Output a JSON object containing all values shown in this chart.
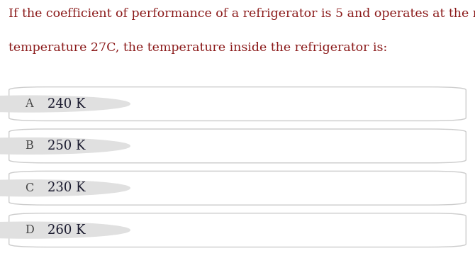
{
  "question_line1": "If the coefficient of performance of a refrigerator is 5 and operates at the room",
  "question_line2": "temperature 27C, the temperature inside the refrigerator is:",
  "options": [
    {
      "label": "A",
      "text": "240 K"
    },
    {
      "label": "B",
      "text": "250 K"
    },
    {
      "label": "C",
      "text": "230 K"
    },
    {
      "label": "D",
      "text": "260 K"
    }
  ],
  "bg_color": "#ffffff",
  "question_color": "#8b1a1a",
  "option_text_color": "#1a1a2e",
  "label_bg_color": "#e0e0e0",
  "label_text_color": "#444444",
  "box_edge_color": "#cccccc",
  "box_fill_color": "#ffffff",
  "question_fontsize": 12.5,
  "option_fontsize": 13.0,
  "label_fontsize": 11.5,
  "fig_width": 6.7,
  "fig_height": 3.71,
  "dpi": 100
}
